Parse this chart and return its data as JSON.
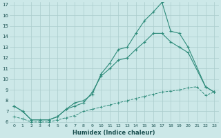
{
  "xlabel": "Humidex (Indice chaleur)",
  "line1_x": [
    0,
    1,
    2,
    3,
    4,
    5,
    6,
    7,
    8,
    9,
    10,
    11,
    12,
    13,
    14,
    15,
    16,
    17,
    18,
    19,
    20,
    22,
    23
  ],
  "line1_y": [
    7.5,
    7.0,
    6.2,
    6.2,
    6.2,
    6.5,
    7.2,
    7.8,
    8.0,
    8.6,
    10.5,
    11.5,
    12.8,
    13.0,
    14.3,
    15.5,
    16.3,
    17.2,
    14.5,
    14.3,
    13.0,
    9.3,
    8.8
  ],
  "line2_x": [
    0,
    1,
    2,
    3,
    4,
    5,
    6,
    7,
    8,
    9,
    10,
    11,
    12,
    13,
    14,
    15,
    16,
    17,
    18,
    19,
    20,
    22,
    23
  ],
  "line2_y": [
    7.5,
    7.0,
    6.2,
    6.2,
    6.2,
    6.5,
    7.2,
    7.5,
    7.8,
    8.8,
    10.3,
    11.0,
    11.8,
    12.0,
    12.8,
    13.5,
    14.3,
    14.3,
    13.5,
    13.0,
    12.5,
    9.3,
    8.8
  ],
  "line3_x": [
    0,
    1,
    2,
    3,
    4,
    5,
    6,
    7,
    8,
    9,
    10,
    11,
    12,
    13,
    14,
    15,
    16,
    17,
    18,
    19,
    20,
    21,
    22,
    23
  ],
  "line3_y": [
    6.5,
    6.3,
    6.0,
    6.0,
    6.0,
    6.2,
    6.4,
    6.6,
    7.0,
    7.2,
    7.4,
    7.6,
    7.8,
    8.0,
    8.2,
    8.4,
    8.6,
    8.8,
    8.9,
    9.0,
    9.2,
    9.3,
    8.5,
    8.8
  ],
  "line_color": "#2e8b7a",
  "bg_color": "#cce8e8",
  "grid_color": "#aacccc",
  "ylim": [
    6,
    17
  ],
  "xlim": [
    -0.5,
    23.5
  ],
  "yticks": [
    6,
    7,
    8,
    9,
    10,
    11,
    12,
    13,
    14,
    15,
    16,
    17
  ],
  "xticks": [
    0,
    1,
    2,
    3,
    4,
    5,
    6,
    7,
    8,
    9,
    10,
    11,
    12,
    13,
    14,
    15,
    16,
    17,
    18,
    19,
    20,
    21,
    22,
    23
  ]
}
